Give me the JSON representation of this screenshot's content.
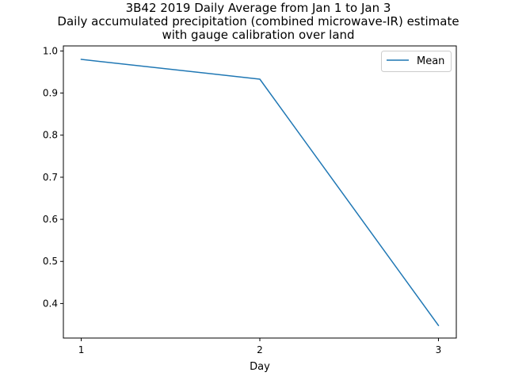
{
  "chart_data": {
    "type": "line",
    "title_lines": [
      "3B42 2019 Daily Average from Jan 1 to Jan 3",
      "Daily accumulated precipitation (combined microwave-IR) estimate",
      "with  gauge calibration over land"
    ],
    "xlabel": "Day",
    "ylabel": "",
    "x": [
      1,
      2,
      3
    ],
    "xticks": [
      "1",
      "2",
      "3"
    ],
    "xlim": [
      0.9,
      3.1
    ],
    "yticks": [
      "0.4",
      "0.5",
      "0.6",
      "0.7",
      "0.8",
      "0.9",
      "1.0"
    ],
    "ylim": [
      0.318,
      1.012
    ],
    "series": [
      {
        "name": "Mean",
        "values": [
          0.98,
          0.933,
          0.348
        ],
        "color": "#1f77b4"
      }
    ],
    "legend": "top-right",
    "grid": false
  }
}
